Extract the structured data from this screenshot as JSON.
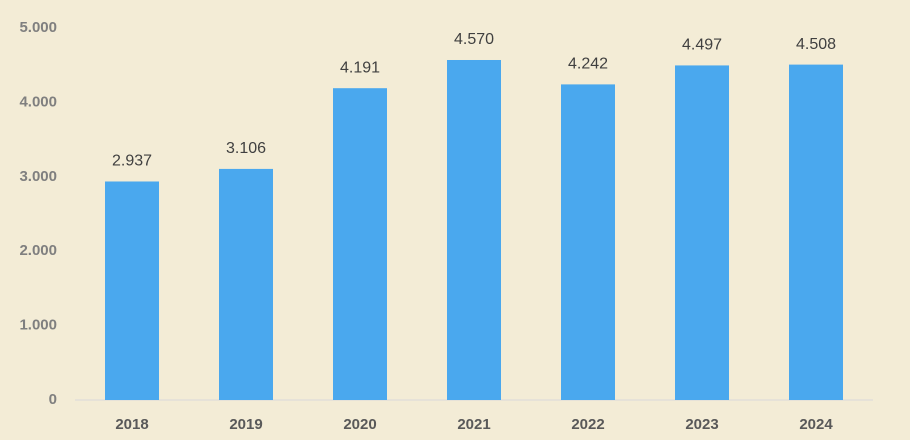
{
  "chart_data": {
    "type": "bar",
    "categories": [
      "2018",
      "2019",
      "2020",
      "2021",
      "2022",
      "2023",
      "2024"
    ],
    "values": [
      2937,
      3106,
      4191,
      4570,
      4242,
      4497,
      4508
    ],
    "value_labels": [
      "2.937",
      "3.106",
      "4.191",
      "4.570",
      "4.242",
      "4.497",
      "4.508"
    ],
    "color": "#4aa8ee",
    "ylim": [
      0,
      5000
    ],
    "yticks": [
      0,
      {
        "value": 1000,
        "label": "1.000"
      },
      {
        "value": 2000,
        "label": "2.000"
      },
      {
        "value": 3000,
        "label": "3.000"
      },
      {
        "value": 4000,
        "label": "4.000"
      },
      {
        "value": 5000,
        "label": "5.000"
      }
    ],
    "grid": false
  }
}
